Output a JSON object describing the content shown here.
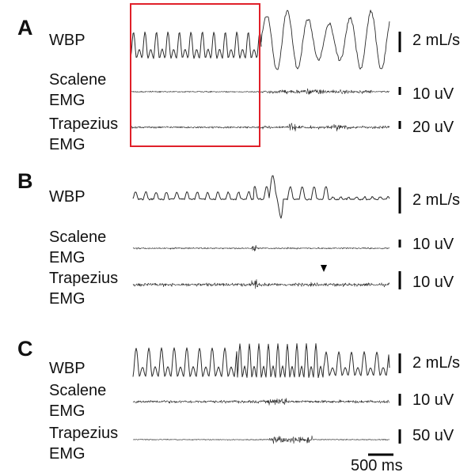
{
  "panels": [
    {
      "letter": "A",
      "rows": [
        {
          "label": "WBP",
          "scale": "2 mL/s",
          "scale_bar_level": 1.0
        },
        {
          "label_line1": "Scalene",
          "label_line2": "EMG",
          "scale": "10 uV",
          "scale_bar_level": 0.4
        },
        {
          "label_line1": "Trapezius",
          "label_line2": "EMG",
          "scale": "20 uV",
          "scale_bar_level": 0.4
        }
      ],
      "highlight_box_color": "#e0202a"
    },
    {
      "letter": "B",
      "rows": [
        {
          "label": "WBP",
          "scale": "2 mL/s",
          "scale_bar_level": 1.0
        },
        {
          "label_line1": "Scalene",
          "label_line2": "EMG",
          "scale": "10 uV",
          "scale_bar_level": 0.4
        },
        {
          "label_line1": "Trapezius",
          "label_line2": "EMG",
          "scale": "10 uV",
          "scale_bar_level": 0.7
        }
      ],
      "marker": "arrowhead"
    },
    {
      "letter": "C",
      "rows": [
        {
          "label": "WBP",
          "scale": "2 mL/s",
          "scale_bar_level": 0.8
        },
        {
          "label_line1": "Scalene",
          "label_line2": "EMG",
          "scale": "10 uV",
          "scale_bar_level": 0.6
        },
        {
          "label_line1": "Trapezius",
          "label_line2": "EMG",
          "scale": "50 uV",
          "scale_bar_level": 0.7
        }
      ]
    }
  ],
  "time_scale": "500 ms",
  "colors": {
    "trace": "#2a2a2a",
    "box": "#e0202a",
    "text": "#111111"
  }
}
